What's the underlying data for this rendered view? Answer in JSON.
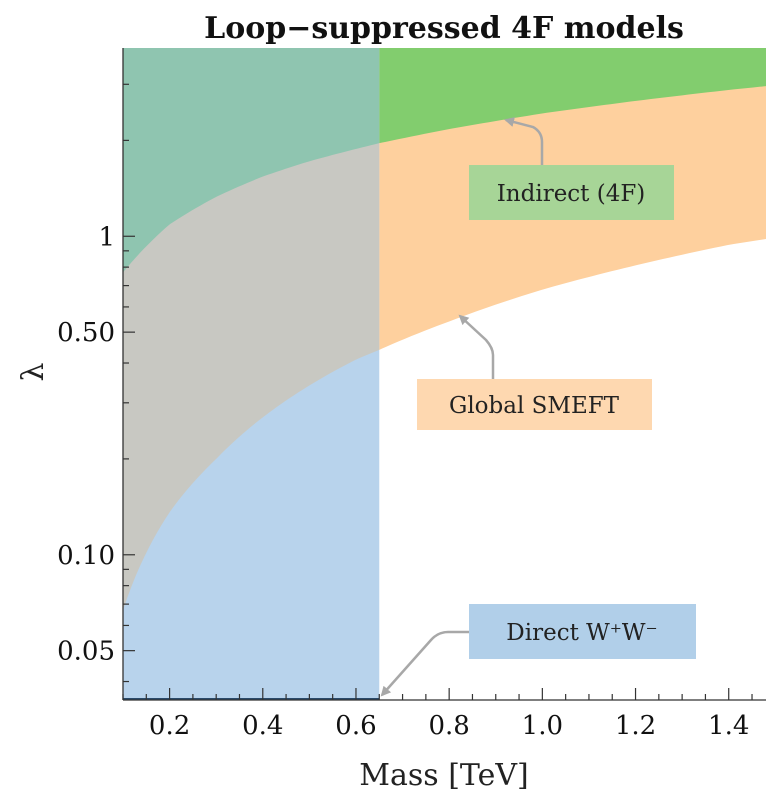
{
  "chart_data": {
    "type": "area",
    "title": "Loop−suppressed 4F models",
    "xlabel": "Mass [TeV]",
    "ylabel": "λ",
    "xlim": [
      0.1,
      1.48
    ],
    "ylim": [
      0.035,
      3.9
    ],
    "yscale": "log",
    "x_ticks": [
      {
        "value": 0.2,
        "label": "0.2"
      },
      {
        "value": 0.4,
        "label": "0.4"
      },
      {
        "value": 0.6,
        "label": "0.6"
      },
      {
        "value": 0.8,
        "label": "0.8"
      },
      {
        "value": 1.0,
        "label": "1.0"
      },
      {
        "value": 1.2,
        "label": "1.2"
      },
      {
        "value": 1.4,
        "label": "1.4"
      }
    ],
    "y_ticks": [
      {
        "value": 0.05,
        "label": "0.05"
      },
      {
        "value": 0.1,
        "label": "0.10"
      },
      {
        "value": 0.5,
        "label": "0.50"
      },
      {
        "value": 1,
        "label": "1"
      }
    ],
    "series": [
      {
        "name": "Indirect (4F)",
        "kind": "excluded-above-curve",
        "color": "#82cd6e",
        "curve": {
          "x": [
            0.1,
            0.2,
            0.3,
            0.4,
            0.5,
            0.6,
            0.65,
            0.8,
            1.0,
            1.2,
            1.4,
            1.48
          ],
          "y": [
            0.77,
            1.09,
            1.33,
            1.54,
            1.72,
            1.88,
            1.96,
            2.17,
            2.43,
            2.66,
            2.88,
            2.96
          ]
        }
      },
      {
        "name": "Global SMEFT",
        "kind": "excluded-above-curve",
        "color": "#fed09e",
        "curve": {
          "x": [
            0.1,
            0.2,
            0.3,
            0.4,
            0.5,
            0.6,
            0.65,
            0.8,
            1.0,
            1.2,
            1.4,
            1.48
          ],
          "y": [
            0.067,
            0.136,
            0.2,
            0.27,
            0.34,
            0.41,
            0.44,
            0.54,
            0.68,
            0.81,
            0.94,
            0.98
          ]
        }
      },
      {
        "name": "Direct W⁺W⁻",
        "kind": "excluded-below-mass",
        "color": "#b8d3ec",
        "mass_limit": 0.65
      }
    ],
    "annotations": [
      {
        "label": "Indirect (4F)",
        "color": "#a7d597",
        "text_color": "#222222"
      },
      {
        "label": "Global SMEFT",
        "color": "#fed8b0",
        "text_color": "#222222"
      },
      {
        "label": "Direct W⁺W⁻",
        "color": "#b1cfe9",
        "text_color": "#222222"
      }
    ],
    "colors": {
      "overlap_indirect_direct": "#8fc5b0",
      "overlap_global_direct": "#c8c8c2",
      "arrow": "#a8a8a8",
      "axis": "#333333"
    },
    "grid": false
  }
}
